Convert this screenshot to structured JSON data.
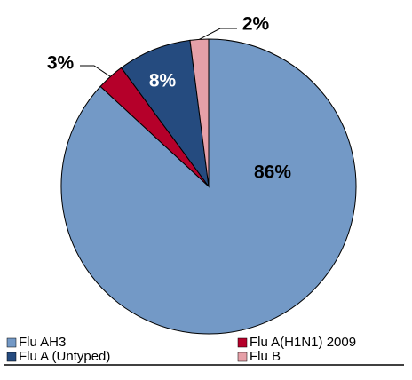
{
  "chart_data": {
    "type": "pie",
    "categories": [
      "Flu AH3",
      "Flu A(H1N1) 2009",
      "Flu A (Untyped)",
      "Flu B"
    ],
    "values": [
      86,
      3,
      8,
      2
    ],
    "value_labels": [
      "86%",
      "3%",
      "8%",
      "2%"
    ],
    "colors": [
      "#7399c6",
      "#b5002a",
      "#254b7f",
      "#e6a0a8"
    ],
    "label_colors": [
      "#000000",
      "#000000",
      "#ffffff",
      "#000000"
    ],
    "legend": "bottom"
  }
}
